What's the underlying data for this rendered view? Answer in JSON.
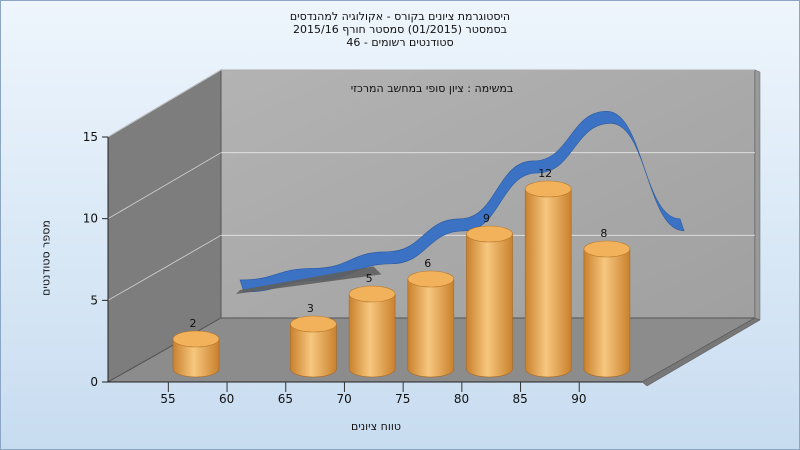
{
  "chart_data": {
    "type": "bar",
    "title_lines": [
      "היסטוגרמת ציונים בקורס - אקולוגיה למהנדסים",
      "בסמסטר  (01/2015)  סמסטר חורף 2015/16",
      "סטודנטים רשומים - 46"
    ],
    "annotation": "במשימה : ציון סופי במחשב המרכזי",
    "xlabel": "טווח ציונים",
    "ylabel": "מספר סטודנטים",
    "x_ticks": [
      "55",
      "60",
      "65",
      "70",
      "75",
      "80",
      "85",
      "90"
    ],
    "y_ticks": [
      "0",
      "5",
      "10",
      "15"
    ],
    "ylim": [
      0,
      15
    ],
    "categories": [
      "55",
      "65",
      "70",
      "75",
      "80",
      "85",
      "90"
    ],
    "values": [
      2,
      3,
      5,
      6,
      9,
      12,
      8
    ],
    "data_labels": [
      "2",
      "3",
      "5",
      "6",
      "9",
      "12",
      "8"
    ],
    "curve_values": [
      2.3,
      3,
      4,
      6,
      9.5,
      12.5,
      6
    ],
    "colors": {
      "bar": "#e8a64a",
      "curve": "#3b72c4",
      "wall": "#a3a3a3",
      "side_wall": "#7d7d7d",
      "floor": "#8c8c8c"
    }
  }
}
